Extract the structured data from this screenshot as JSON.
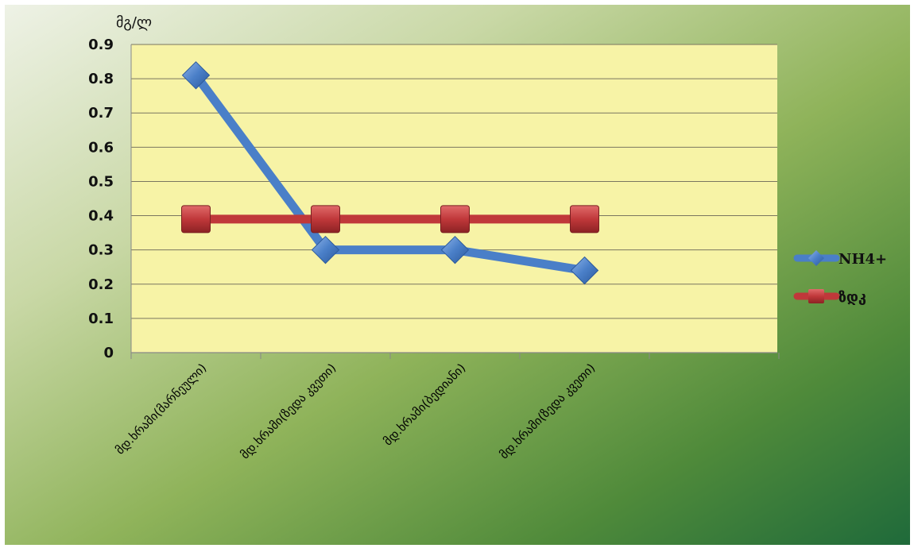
{
  "chart_data": {
    "type": "line",
    "title": "",
    "ylabel": "მგ/ლ",
    "xlabel": "",
    "categories": [
      "მდ.ხრამი(მარნეული)",
      "მდ.ხრამი(ზედა კვეთი)",
      "მდ.ხრამი(ბედიანი)",
      "მდ.ხრამი(ზედა კვეთი)"
    ],
    "series": [
      {
        "name": "NH4+",
        "values": [
          0.81,
          0.3,
          0.3,
          0.24
        ],
        "color": "#4a7fc8",
        "marker": "diamond"
      },
      {
        "name": "ზდკ",
        "values": [
          0.39,
          0.39,
          0.39,
          0.39
        ],
        "color": "#c0383a",
        "marker": "square"
      }
    ],
    "ylim": [
      0,
      0.9
    ],
    "yticks": [
      "0",
      "0.1",
      "0.2",
      "0.3",
      "0.4",
      "0.5",
      "0.6",
      "0.7",
      "0.8",
      "0.9"
    ],
    "grid": true,
    "legend_position": "right",
    "plot_background": "#f7f3a6",
    "outer_background": "gradient-green"
  }
}
